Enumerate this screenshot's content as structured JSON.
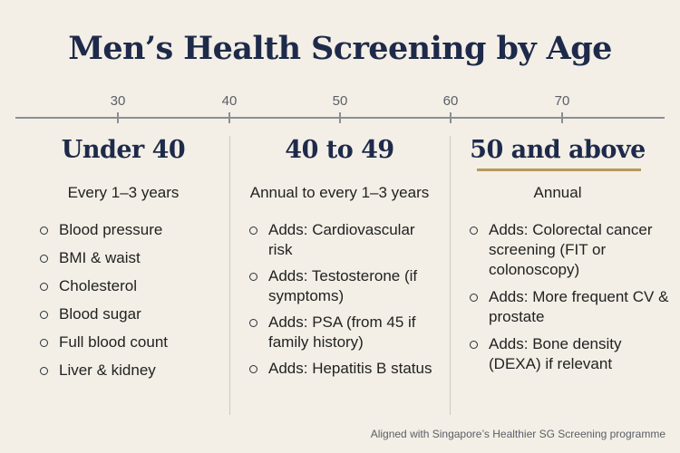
{
  "title": "Men’s Health Screening by Age",
  "axis": {
    "ticks": [
      {
        "label": "30",
        "value": 30
      },
      {
        "label": "40",
        "value": 40
      },
      {
        "label": "50",
        "value": 50
      },
      {
        "label": "60",
        "value": 60
      },
      {
        "label": "70",
        "value": 70
      }
    ]
  },
  "columns": [
    {
      "heading": "Under 40",
      "frequency": "Every 1–3 years",
      "highlighted": false,
      "items": [
        "Blood pressure",
        "BMI & waist",
        "Cholesterol",
        "Blood sugar",
        "Full blood count",
        "Liver & kidney"
      ]
    },
    {
      "heading": "40 to 49",
      "frequency": "Annual to every 1–3 years",
      "highlighted": false,
      "items": [
        "Adds: Cardiovascular risk",
        "Adds: Testosterone (if symptoms)",
        "Adds: PSA (from 45 if family history)",
        "Adds: Hepatitis B status"
      ]
    },
    {
      "heading": "50 and above",
      "frequency": "Annual",
      "highlighted": true,
      "items": [
        "Adds: Colorectal cancer screening (FIT or colonoscopy)",
        "Adds: More frequent CV & prostate",
        "Adds: Bone density (DEXA) if relevant"
      ]
    }
  ],
  "footer": "Aligned with Singapore’s Healthier SG Screening programme",
  "colors": {
    "background": "#f3efe6",
    "heading": "#1e2a4a",
    "accent_underline": "#b59a5a"
  }
}
